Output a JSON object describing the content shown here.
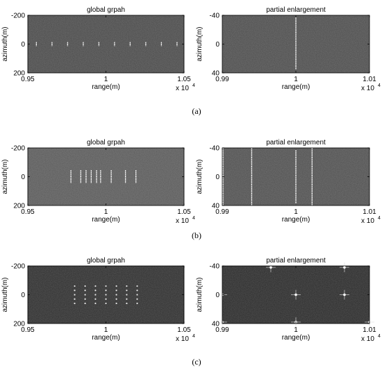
{
  "figure": {
    "captions": [
      "(a)",
      "(b)",
      "(c)"
    ]
  },
  "chart_data": [
    {
      "type": "heatmap",
      "panel": "a",
      "side": "left",
      "title": "global grpah",
      "xlabel": "range(m)",
      "ylabel": "azimuth(m)",
      "xlim": [
        0.95,
        1.05
      ],
      "ylim": [
        -200,
        200
      ],
      "xticks": [
        "0.95",
        "1",
        "1.05"
      ],
      "yticks": [
        "-200",
        "0",
        "200"
      ],
      "xmultiplier": "x 10",
      "xexponent": "4",
      "background": "#4a4a4a",
      "marks": [
        {
          "kind": "vline",
          "x": 0.9555,
          "y1": -14,
          "y2": 14
        },
        {
          "kind": "vline",
          "x": 0.9655,
          "y1": -14,
          "y2": 14
        },
        {
          "kind": "vline",
          "x": 0.9755,
          "y1": -14,
          "y2": 14
        },
        {
          "kind": "vline",
          "x": 0.9855,
          "y1": -14,
          "y2": 14
        },
        {
          "kind": "vline",
          "x": 0.9955,
          "y1": -14,
          "y2": 14
        },
        {
          "kind": "vline",
          "x": 1.0055,
          "y1": -14,
          "y2": 14
        },
        {
          "kind": "vline",
          "x": 1.0155,
          "y1": -14,
          "y2": 14
        },
        {
          "kind": "vline",
          "x": 1.0255,
          "y1": -14,
          "y2": 14
        },
        {
          "kind": "vline",
          "x": 1.0355,
          "y1": -14,
          "y2": 14
        },
        {
          "kind": "vline",
          "x": 1.0455,
          "y1": -14,
          "y2": 14
        }
      ]
    },
    {
      "type": "heatmap",
      "panel": "a",
      "side": "right",
      "title": "partial enlargement",
      "xlabel": "range(m)",
      "ylabel": "azimuth(m)",
      "xlim": [
        0.99,
        1.01
      ],
      "ylim": [
        -40,
        40
      ],
      "xticks": [
        "0.99",
        "1",
        "1.01"
      ],
      "yticks": [
        "-40",
        "0",
        "40"
      ],
      "xmultiplier": "x 10",
      "xexponent": "4",
      "background": "#4d4d4d",
      "marks": [
        {
          "kind": "vline",
          "x": 1.0,
          "y1": -37,
          "y2": 35
        }
      ]
    },
    {
      "type": "heatmap",
      "panel": "b",
      "side": "left",
      "title": "global grpah",
      "xlabel": "range(m)",
      "ylabel": "azimuth(m)",
      "xlim": [
        0.95,
        1.05
      ],
      "ylim": [
        -200,
        200
      ],
      "xticks": [
        "0.95",
        "1",
        "1.05"
      ],
      "yticks": [
        "-200",
        "0",
        "200"
      ],
      "xmultiplier": "x 10",
      "xexponent": "4",
      "background": "#5a5a5a",
      "marks": [
        {
          "kind": "vline",
          "x": 0.9776,
          "y1": -45,
          "y2": 45
        },
        {
          "kind": "vline",
          "x": 0.9839,
          "y1": -45,
          "y2": 45
        },
        {
          "kind": "vline",
          "x": 0.9873,
          "y1": -45,
          "y2": 45
        },
        {
          "kind": "vline",
          "x": 0.9906,
          "y1": -45,
          "y2": 45
        },
        {
          "kind": "vline",
          "x": 0.994,
          "y1": -45,
          "y2": 45
        },
        {
          "kind": "vline",
          "x": 0.9966,
          "y1": -45,
          "y2": 45
        },
        {
          "kind": "vline",
          "x": 1.0034,
          "y1": -45,
          "y2": 45
        },
        {
          "kind": "vline",
          "x": 1.0125,
          "y1": -45,
          "y2": 45
        },
        {
          "kind": "vline",
          "x": 1.0192,
          "y1": -45,
          "y2": 45
        }
      ]
    },
    {
      "type": "heatmap",
      "panel": "b",
      "side": "right",
      "title": "partial enlargement",
      "xlabel": "range(m)",
      "ylabel": "azimuth(m)",
      "xlim": [
        0.99,
        1.01
      ],
      "ylim": [
        -40,
        40
      ],
      "xticks": [
        "0.99",
        "1",
        "1.01"
      ],
      "yticks": [
        "-40",
        "0",
        "40"
      ],
      "xmultiplier": "x 10",
      "xexponent": "4",
      "background": "#505050",
      "marks": [
        {
          "kind": "vline",
          "x": 0.9901,
          "y1": -40,
          "y2": 40
        },
        {
          "kind": "vline",
          "x": 0.994,
          "y1": -40,
          "y2": 40
        },
        {
          "kind": "vline",
          "x": 1.0,
          "y1": -40,
          "y2": 40
        },
        {
          "kind": "vline",
          "x": 1.0022,
          "y1": -40,
          "y2": 40
        }
      ]
    },
    {
      "type": "heatmap",
      "panel": "c",
      "side": "left",
      "title": "global grpah",
      "xlabel": "range(m)",
      "ylabel": "azimuth(m)",
      "xlim": [
        0.95,
        1.05
      ],
      "ylim": [
        -200,
        200
      ],
      "xticks": [
        "0.95",
        "1",
        "1.05"
      ],
      "yticks": [
        "-200",
        "0",
        "200"
      ],
      "xmultiplier": "x 10",
      "xexponent": "4",
      "background": "#2e2e2e",
      "grid_points": {
        "x": [
          0.98,
          0.9867,
          0.9933,
          1.0,
          1.0067,
          1.0133,
          1.02
        ],
        "y": [
          -60,
          -30,
          0,
          30,
          60
        ]
      }
    },
    {
      "type": "heatmap",
      "panel": "c",
      "side": "right",
      "title": "partial enlargement",
      "xlabel": "range(m)",
      "ylabel": "azimuth(m)",
      "xlim": [
        0.99,
        1.01
      ],
      "ylim": [
        -40,
        40
      ],
      "xticks": [
        "0.99",
        "1",
        "1.01"
      ],
      "yticks": [
        "-40",
        "0",
        "40"
      ],
      "xmultiplier": "x 10",
      "xexponent": "4",
      "background": "#2a2a2a",
      "marks": [
        {
          "kind": "point",
          "x": 1.0,
          "y": 0
        },
        {
          "kind": "point",
          "x": 0.99,
          "y": 0
        },
        {
          "kind": "point",
          "x": 1.0066,
          "y": 0
        },
        {
          "kind": "point",
          "x": 0.9966,
          "y": -38
        },
        {
          "kind": "point",
          "x": 1.0066,
          "y": -38
        },
        {
          "kind": "point",
          "x": 0.99,
          "y": 38
        },
        {
          "kind": "point",
          "x": 1.0,
          "y": 38
        },
        {
          "kind": "point",
          "x": 1.01,
          "y": 38
        }
      ]
    }
  ]
}
